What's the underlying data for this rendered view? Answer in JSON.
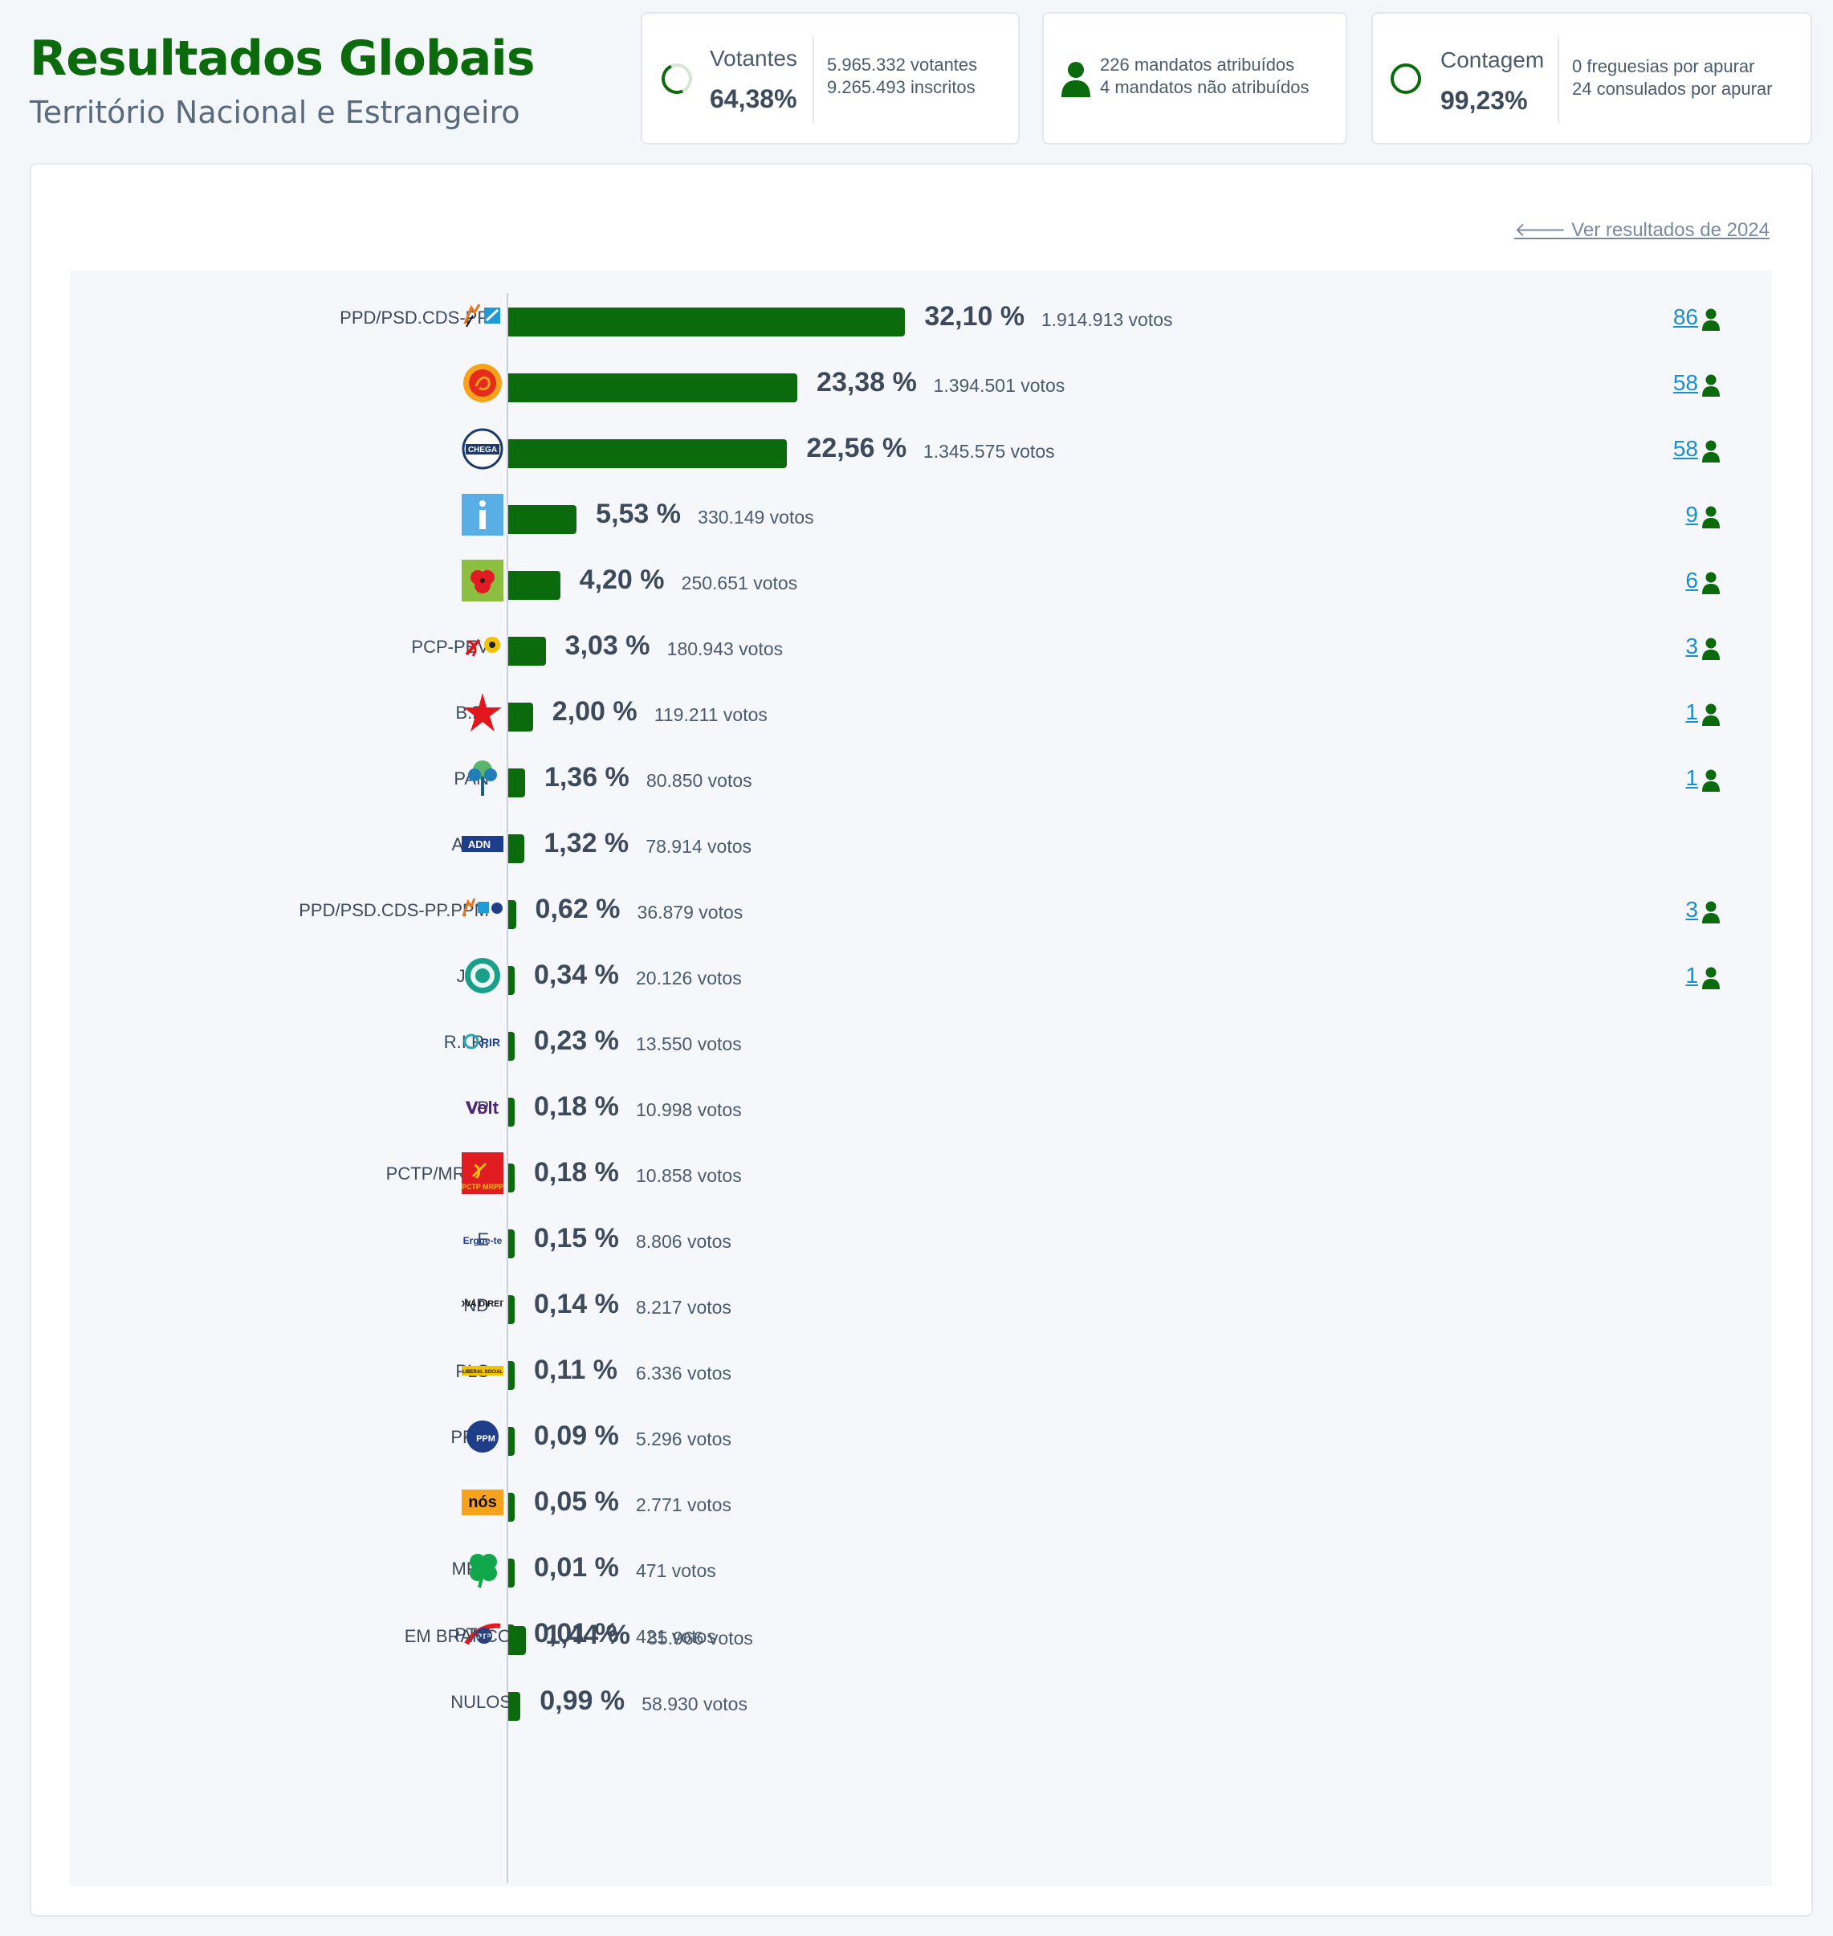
{
  "header": {
    "title": "Resultados Globais",
    "subtitle": "Território Nacional e Estrangeiro"
  },
  "cards": {
    "votantes": {
      "label": "Votantes",
      "value": "64,38%",
      "line1": "5.965.332 votantes",
      "line2": "9.265.493 inscritos"
    },
    "mandatos": {
      "line1": "226 mandatos atribuídos",
      "line2": "4 mandatos não atribuídos"
    },
    "contagem": {
      "label": "Contagem",
      "value": "99,23%",
      "line1": "0 freguesias por apurar",
      "line2": "24 consulados por apurar"
    }
  },
  "link_previous": "Ver resultados de 2024",
  "colors": {
    "accent": "#0b6a0b",
    "link": "#1a8fc9"
  },
  "chart_data": {
    "type": "bar",
    "orientation": "horizontal",
    "categories": [
      "PPD/PSD.CDS-PP",
      "PS",
      "CH",
      "IL",
      "L",
      "PCP-PEV",
      "B.E.",
      "PAN",
      "ADN",
      "PPD/PSD.CDS-PP.PPM",
      "JPP",
      "R.I.R.",
      "VP",
      "PCTP/MRPP",
      "E",
      "ND",
      "PLS",
      "PPM",
      "NC",
      "MPT",
      "PTP",
      "EM BRANCO",
      "NULOS"
    ],
    "values": [
      32.1,
      23.38,
      22.56,
      5.53,
      4.2,
      3.03,
      2.0,
      1.36,
      1.32,
      0.62,
      0.34,
      0.23,
      0.18,
      0.18,
      0.15,
      0.14,
      0.11,
      0.09,
      0.05,
      0.01,
      0.01,
      1.44,
      0.99
    ],
    "pct_labels": [
      "32,10 %",
      "23,38 %",
      "22,56 %",
      "5,53 %",
      "4,20 %",
      "3,03 %",
      "2,00 %",
      "1,36 %",
      "1,32 %",
      "0,62 %",
      "0,34 %",
      "0,23 %",
      "0,18 %",
      "0,18 %",
      "0,15 %",
      "0,14 %",
      "0,11 %",
      "0,09 %",
      "0,05 %",
      "0,01 %",
      "0,01 %",
      "1,44 %",
      "0,99 %"
    ],
    "votes": [
      "1.914.913 votos",
      "1.394.501 votos",
      "1.345.575 votos",
      "330.149 votos",
      "250.651 votos",
      "180.943 votos",
      "119.211 votos",
      "80.850 votos",
      "78.914 votos",
      "36.879 votos",
      "20.126 votos",
      "13.550 votos",
      "10.998 votos",
      "10.858 votos",
      "8.806 votos",
      "8.217 votos",
      "6.336 votos",
      "5.296 votos",
      "2.771 votos",
      "471 votos",
      "421 votos",
      "85.966 votos",
      "58.930 votos"
    ],
    "seats": [
      "86",
      "58",
      "58",
      "9",
      "6",
      "3",
      "1",
      "1",
      "",
      "3",
      "1",
      "",
      "",
      "",
      "",
      "",
      "",
      "",
      "",
      "",
      "",
      "",
      ""
    ],
    "logos": [
      "ppd-cds-logo",
      "ps-logo",
      "chega-logo",
      "il-logo",
      "livre-logo",
      "pcp-pev-logo",
      "be-logo",
      "pan-logo",
      "adn-logo",
      "ppd-cds-ppm-logo",
      "jpp-logo",
      "rir-logo",
      "volt-logo",
      "pctp-logo",
      "ergue-te-logo",
      "nova-direita-logo",
      "pls-logo",
      "ppm-logo",
      "nos-cidadaos-logo",
      "mpt-logo",
      "ptp-logo",
      "",
      ""
    ],
    "logo_texts": [
      "",
      "",
      "CHEGA",
      "",
      "",
      "",
      "",
      "",
      "ADN",
      "",
      "",
      "RIR",
      "Volt",
      "PCTP MRPP",
      "Ergue-te",
      "NOVA DIREITA",
      "LIBERAL SOCIAL",
      "PPM",
      "nós",
      "",
      "PTP",
      "",
      ""
    ],
    "xlim": [
      0,
      100
    ]
  }
}
